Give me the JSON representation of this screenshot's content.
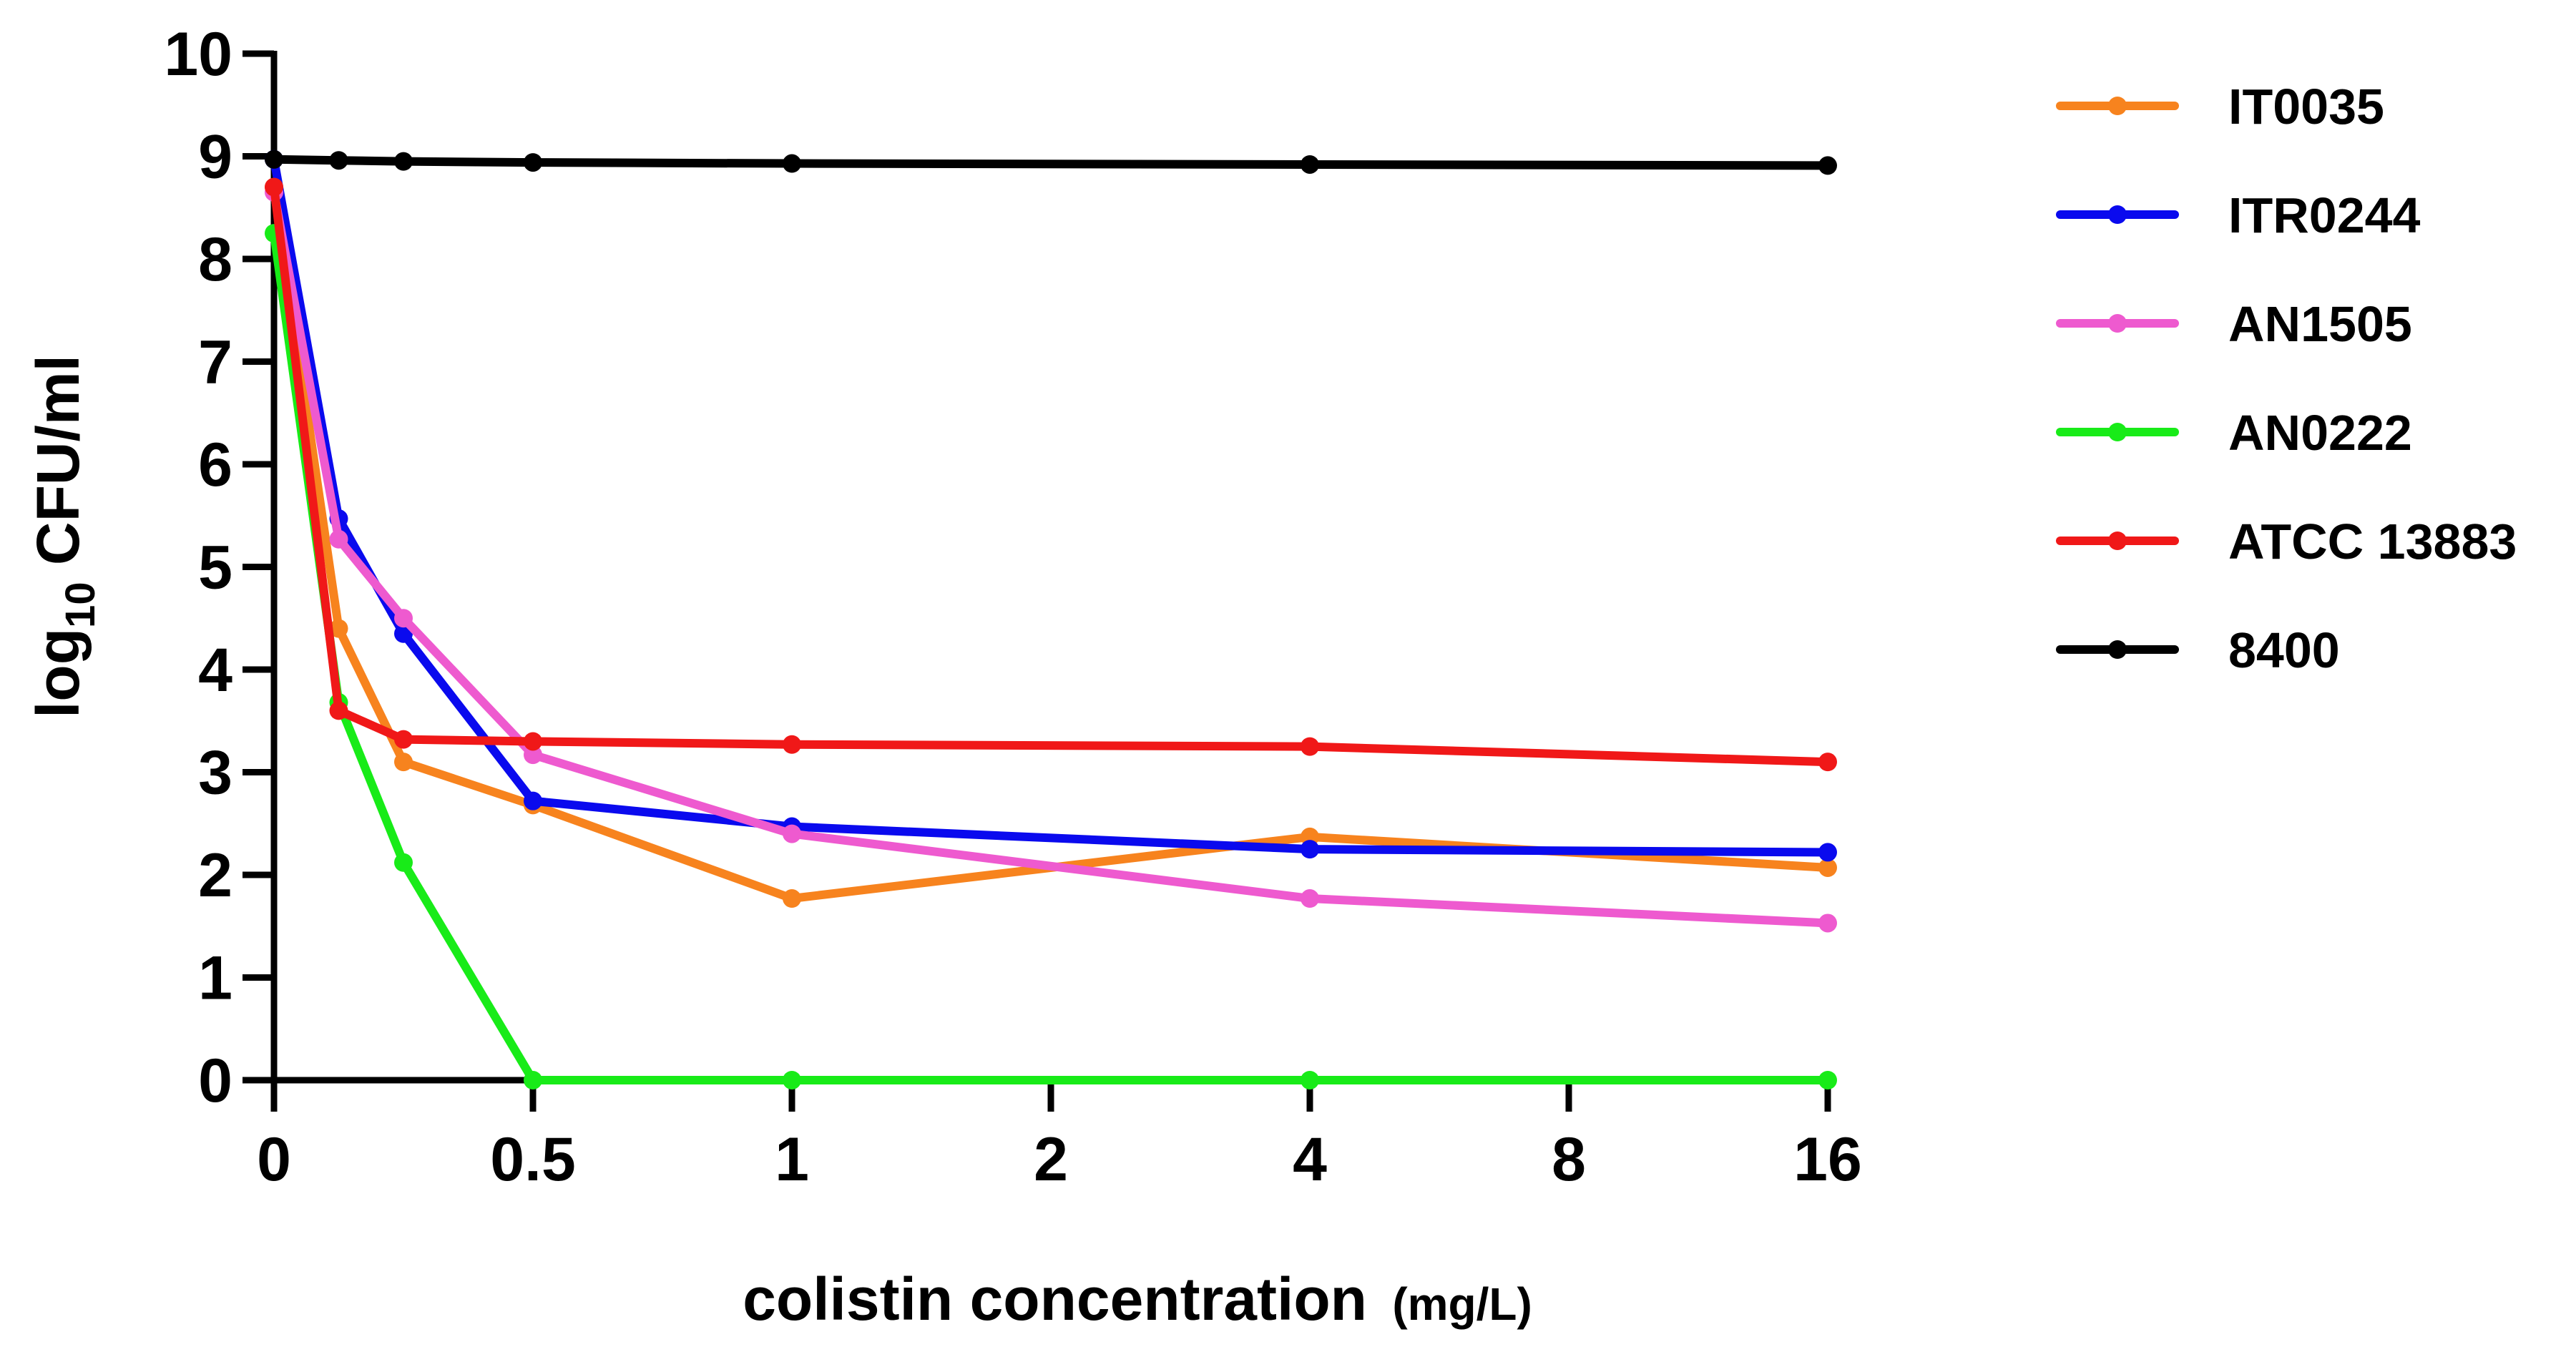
{
  "chart_data": {
    "type": "line",
    "title": "",
    "xlabel": "colistin concentration",
    "xlabel_unit": "(mg/L)",
    "ylabel": "log",
    "ylabel_subscript": "10",
    "ylabel_suffix": " CFU/ml",
    "ylim": [
      0,
      10
    ],
    "y_ticks": [
      "0",
      "1",
      "2",
      "3",
      "4",
      "5",
      "6",
      "7",
      "8",
      "9",
      "10"
    ],
    "x_ticks": [
      "0",
      "0.5",
      "1",
      "2",
      "4",
      "8",
      "16"
    ],
    "x_points": [
      0,
      0.125,
      0.25,
      0.5,
      1,
      4,
      16
    ],
    "x_point_axis_positions": [
      0,
      0.25,
      0.5,
      1,
      2,
      4,
      6
    ],
    "legend_position": "right",
    "series": [
      {
        "name": "IT0035",
        "color": "#F7831E",
        "values": [
          8.7,
          4.4,
          3.1,
          2.68,
          1.77,
          2.37,
          2.07
        ]
      },
      {
        "name": "ITR0244",
        "color": "#0A0AEE",
        "values": [
          8.97,
          5.47,
          4.35,
          2.72,
          2.47,
          2.25,
          2.22
        ]
      },
      {
        "name": "AN1505",
        "color": "#EE5ACF",
        "values": [
          8.65,
          5.27,
          4.5,
          3.17,
          2.4,
          1.77,
          1.53
        ]
      },
      {
        "name": "AN0222",
        "color": "#18EB18",
        "values": [
          8.25,
          3.68,
          2.12,
          0,
          0,
          0,
          0
        ]
      },
      {
        "name": "ATCC 13883",
        "color": "#F01818",
        "values": [
          8.7,
          3.6,
          3.32,
          3.3,
          3.27,
          3.25,
          3.1
        ]
      },
      {
        "name": "8400",
        "color": "#000000",
        "values": [
          8.97,
          8.96,
          8.95,
          8.94,
          8.93,
          8.92,
          8.91
        ]
      }
    ]
  }
}
